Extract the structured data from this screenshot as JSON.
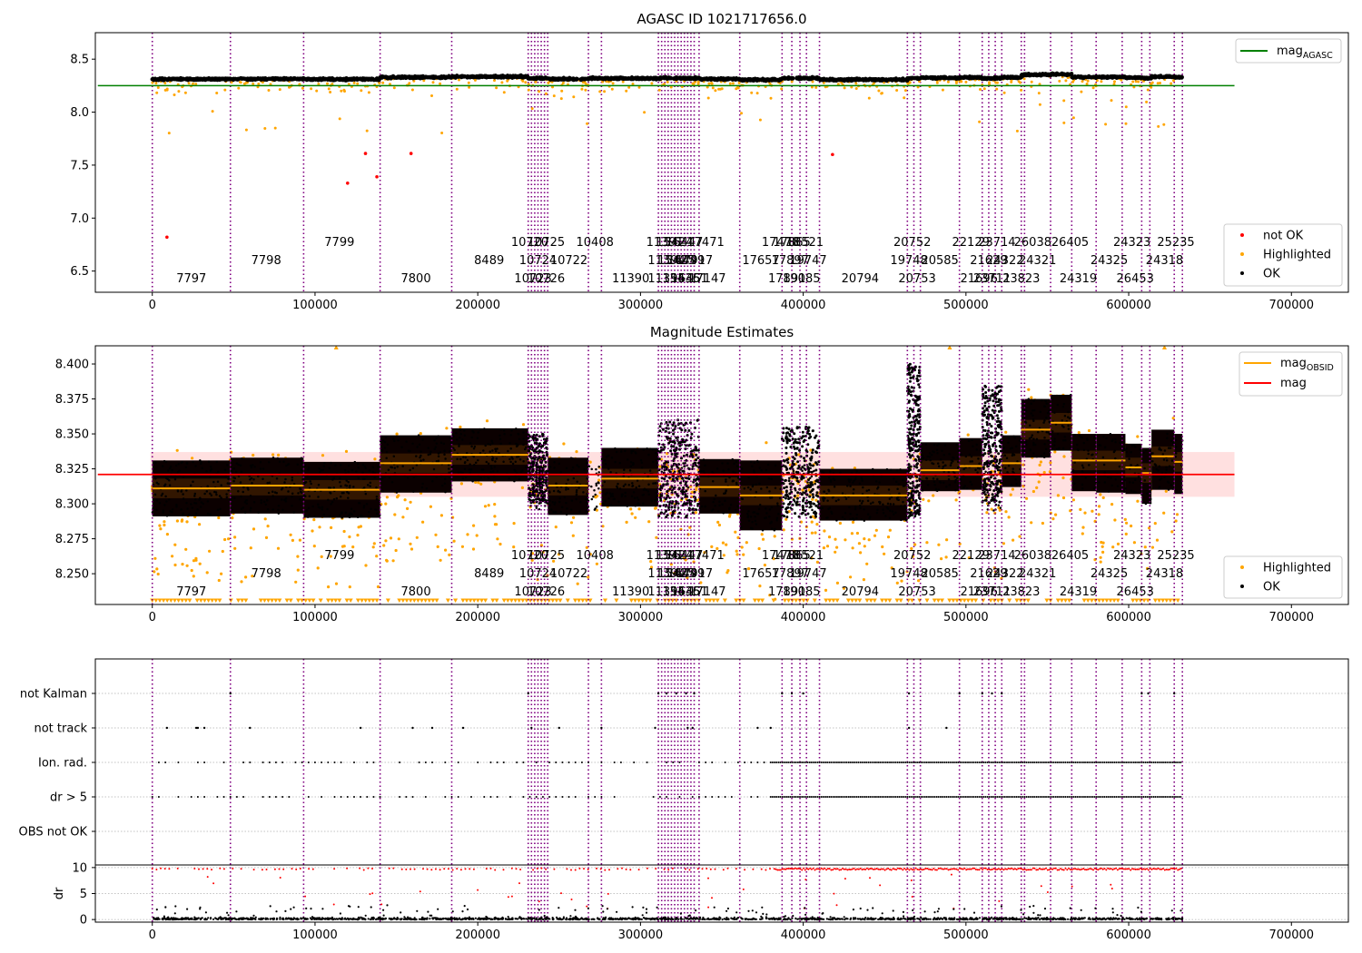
{
  "chart_data": [
    {
      "type": "scatter",
      "title": "AGASC ID 1021717656.0",
      "xlim": [
        -35000,
        735000
      ],
      "ylim": [
        6.3,
        8.75
      ],
      "xticks": [
        0,
        100000,
        200000,
        300000,
        400000,
        500000,
        600000,
        700000
      ],
      "xtick_labels": [
        "0",
        "100000",
        "200000",
        "300000",
        "400000",
        "500000",
        "600000",
        "700000"
      ],
      "yticks": [
        6.5,
        7.0,
        7.5,
        8.0,
        8.5
      ],
      "ytick_labels": [
        "6.5",
        "7.0",
        "7.5",
        "8.0",
        "8.5"
      ],
      "legend_top": [
        {
          "label": "mag",
          "sub": "AGASC",
          "color": "#008000",
          "kind": "line"
        }
      ],
      "legend_bottom": [
        {
          "label": "not OK",
          "color": "#ff0000",
          "kind": "dot"
        },
        {
          "label": "Highlighted",
          "color": "#ffa500",
          "kind": "dot"
        },
        {
          "label": "OK",
          "color": "#000000",
          "kind": "dot"
        }
      ],
      "mag_agasc": 8.25,
      "not_ok_points": [
        [
          9000,
          6.82
        ],
        [
          120000,
          7.33
        ],
        [
          131000,
          7.61
        ],
        [
          138000,
          7.39
        ],
        [
          159000,
          7.61
        ],
        [
          418000,
          7.6
        ]
      ]
    },
    {
      "type": "scatter",
      "title": "Magnitude Estimates",
      "xlim": [
        -35000,
        735000
      ],
      "ylim": [
        8.228,
        8.413
      ],
      "xticks": [
        0,
        100000,
        200000,
        300000,
        400000,
        500000,
        600000,
        700000
      ],
      "xtick_labels": [
        "0",
        "100000",
        "200000",
        "300000",
        "400000",
        "500000",
        "600000",
        "700000"
      ],
      "yticks": [
        8.25,
        8.275,
        8.3,
        8.325,
        8.35,
        8.375,
        8.4
      ],
      "ytick_labels": [
        "8.250",
        "8.275",
        "8.300",
        "8.325",
        "8.350",
        "8.375",
        "8.400"
      ],
      "legend_top": [
        {
          "label": "mag",
          "sub": "OBSID",
          "color": "#ffa500",
          "kind": "line"
        },
        {
          "label": "mag",
          "sub": "",
          "color": "#ff0000",
          "kind": "line"
        }
      ],
      "legend_bottom": [
        {
          "label": "Highlighted",
          "color": "#ffa500",
          "kind": "dot"
        },
        {
          "label": "OK",
          "color": "#000000",
          "kind": "dot"
        }
      ],
      "mag": 8.321,
      "mag_band": [
        8.305,
        8.337
      ],
      "obsid_segments": [
        {
          "x0": 0,
          "x1": 48000,
          "mag": 8.311,
          "lo": 8.291,
          "hi": 8.331
        },
        {
          "x0": 48000,
          "x1": 93000,
          "mag": 8.313,
          "lo": 8.293,
          "hi": 8.333
        },
        {
          "x0": 93000,
          "x1": 140000,
          "mag": 8.31,
          "lo": 8.29,
          "hi": 8.33
        },
        {
          "x0": 140000,
          "x1": 184000,
          "mag": 8.329,
          "lo": 8.308,
          "hi": 8.349
        },
        {
          "x0": 184000,
          "x1": 231000,
          "mag": 8.335,
          "lo": 8.316,
          "hi": 8.354
        },
        {
          "x0": 243000,
          "x1": 268000,
          "mag": 8.313,
          "lo": 8.292,
          "hi": 8.333
        },
        {
          "x0": 276000,
          "x1": 311000,
          "mag": 8.318,
          "lo": 8.298,
          "hi": 8.34
        },
        {
          "x0": 336000,
          "x1": 361000,
          "mag": 8.312,
          "lo": 8.293,
          "hi": 8.332
        },
        {
          "x0": 361000,
          "x1": 387000,
          "mag": 8.306,
          "lo": 8.281,
          "hi": 8.331
        },
        {
          "x0": 410000,
          "x1": 464000,
          "mag": 8.306,
          "lo": 8.288,
          "hi": 8.325
        },
        {
          "x0": 472000,
          "x1": 496000,
          "mag": 8.324,
          "lo": 8.309,
          "hi": 8.344
        },
        {
          "x0": 496000,
          "x1": 510000,
          "mag": 8.327,
          "lo": 8.31,
          "hi": 8.347
        },
        {
          "x0": 522000,
          "x1": 534000,
          "mag": 8.329,
          "lo": 8.312,
          "hi": 8.349
        },
        {
          "x0": 534000,
          "x1": 552000,
          "mag": 8.353,
          "lo": 8.333,
          "hi": 8.375
        },
        {
          "x0": 552000,
          "x1": 565000,
          "mag": 8.358,
          "lo": 8.338,
          "hi": 8.378
        },
        {
          "x0": 565000,
          "x1": 580000,
          "mag": 8.331,
          "lo": 8.309,
          "hi": 8.35
        },
        {
          "x0": 580000,
          "x1": 598000,
          "mag": 8.331,
          "lo": 8.308,
          "hi": 8.35
        },
        {
          "x0": 598000,
          "x1": 608000,
          "mag": 8.326,
          "lo": 8.307,
          "hi": 8.343
        },
        {
          "x0": 608000,
          "x1": 614000,
          "mag": 8.322,
          "lo": 8.3,
          "hi": 8.34
        },
        {
          "x0": 614000,
          "x1": 628000,
          "mag": 8.334,
          "lo": 8.31,
          "hi": 8.353
        },
        {
          "x0": 628000,
          "x1": 633000,
          "mag": 8.33,
          "lo": 8.307,
          "hi": 8.35
        }
      ]
    },
    {
      "type": "scatter",
      "title": "",
      "xlim": [
        -35000,
        735000
      ],
      "xticks": [
        0,
        100000,
        200000,
        300000,
        400000,
        500000,
        600000,
        700000
      ],
      "xtick_labels": [
        "0",
        "100000",
        "200000",
        "300000",
        "400000",
        "500000",
        "600000",
        "700000"
      ],
      "categories": [
        "OBS not OK",
        "dr > 5",
        "Ion. rad.",
        "not track",
        "not Kalman"
      ],
      "flag_rows": [
        {
          "label": "not Kalman",
          "xs": [
            48000,
            231000,
            311000,
            316000,
            322000,
            328000,
            333000,
            387000,
            393000,
            400000,
            465000,
            496000,
            510000,
            516000,
            522000,
            608000,
            612000,
            628000
          ]
        },
        {
          "label": "not track",
          "xs": [
            9000,
            27000,
            28000,
            32000,
            60000,
            128000,
            160000,
            172000,
            191000,
            233000,
            250000,
            276000,
            309000,
            329000,
            332000,
            372000,
            380000,
            465000,
            488000
          ]
        }
      ],
      "dr_ylim": [
        -0.5,
        10.5
      ],
      "dr_yticks": [
        0,
        5,
        10
      ],
      "dr_ytick_labels": [
        "0",
        "5",
        "10"
      ],
      "dr_ylabel": "dr"
    }
  ],
  "obsid_lines": [
    0,
    48000,
    93000,
    140000,
    184000,
    231000,
    233000,
    235000,
    237000,
    239000,
    241000,
    243000,
    268000,
    276000,
    311000,
    313000,
    315000,
    317000,
    319000,
    321000,
    323000,
    325000,
    327000,
    329000,
    331000,
    333000,
    336000,
    361000,
    387000,
    393000,
    398000,
    402000,
    410000,
    464000,
    468000,
    472000,
    496000,
    510000,
    514000,
    518000,
    522000,
    534000,
    536000,
    552000,
    565000,
    580000,
    596000,
    608000,
    613000,
    628000,
    633000
  ],
  "obsid_labels": [
    {
      "text": "7797",
      "x": 24000,
      "row": 0
    },
    {
      "text": "7798",
      "x": 70000,
      "row": 1
    },
    {
      "text": "7799",
      "x": 115000,
      "row": 2
    },
    {
      "text": "7800",
      "x": 162000,
      "row": 0
    },
    {
      "text": "8489",
      "x": 207000,
      "row": 1
    },
    {
      "text": "10720",
      "x": 232000,
      "row": 2
    },
    {
      "text": "10724",
      "x": 237000,
      "row": 1
    },
    {
      "text": "10723",
      "x": 234000,
      "row": 0
    },
    {
      "text": "10725",
      "x": 242000,
      "row": 2
    },
    {
      "text": "10726",
      "x": 242000,
      "row": 0
    },
    {
      "text": "10722",
      "x": 256000,
      "row": 1
    },
    {
      "text": "10408",
      "x": 272000,
      "row": 2
    },
    {
      "text": "11390",
      "x": 294000,
      "row": 0
    },
    {
      "text": "11391",
      "x": 315000,
      "row": 2
    },
    {
      "text": "11394",
      "x": 316000,
      "row": 1
    },
    {
      "text": "11395",
      "x": 316000,
      "row": 0
    },
    {
      "text": "15424",
      "x": 321000,
      "row": 2
    },
    {
      "text": "15425",
      "x": 322000,
      "row": 1
    },
    {
      "text": "15436",
      "x": 325000,
      "row": 0
    },
    {
      "text": "16447",
      "x": 327000,
      "row": 2
    },
    {
      "text": "16449",
      "x": 328000,
      "row": 1
    },
    {
      "text": "16451",
      "x": 330000,
      "row": 0
    },
    {
      "text": "17471",
      "x": 340000,
      "row": 2
    },
    {
      "text": "17147",
      "x": 341000,
      "row": 0
    },
    {
      "text": "17917",
      "x": 333000,
      "row": 1
    },
    {
      "text": "17657",
      "x": 374000,
      "row": 1
    },
    {
      "text": "17478",
      "x": 386000,
      "row": 2
    },
    {
      "text": "17891",
      "x": 390000,
      "row": 0
    },
    {
      "text": "17897",
      "x": 392000,
      "row": 1
    },
    {
      "text": "17865",
      "x": 393000,
      "row": 2
    },
    {
      "text": "18521",
      "x": 401000,
      "row": 2
    },
    {
      "text": "19747",
      "x": 403000,
      "row": 1
    },
    {
      "text": "19085",
      "x": 399000,
      "row": 0
    },
    {
      "text": "20794",
      "x": 435000,
      "row": 0
    },
    {
      "text": "20752",
      "x": 467000,
      "row": 2
    },
    {
      "text": "19748",
      "x": 465000,
      "row": 1
    },
    {
      "text": "20753",
      "x": 470000,
      "row": 0
    },
    {
      "text": "20585",
      "x": 484000,
      "row": 1
    },
    {
      "text": "22129",
      "x": 503000,
      "row": 2
    },
    {
      "text": "21629",
      "x": 514000,
      "row": 1
    },
    {
      "text": "21696",
      "x": 508000,
      "row": 0
    },
    {
      "text": "23714",
      "x": 519000,
      "row": 2
    },
    {
      "text": "24322",
      "x": 524000,
      "row": 1
    },
    {
      "text": "23711",
      "x": 516000,
      "row": 0
    },
    {
      "text": "26038",
      "x": 541000,
      "row": 2
    },
    {
      "text": "23823",
      "x": 534000,
      "row": 0
    },
    {
      "text": "24321",
      "x": 544000,
      "row": 1
    },
    {
      "text": "26405",
      "x": 564000,
      "row": 2
    },
    {
      "text": "24319",
      "x": 569000,
      "row": 0
    },
    {
      "text": "24325",
      "x": 588000,
      "row": 1
    },
    {
      "text": "24323",
      "x": 602000,
      "row": 2
    },
    {
      "text": "26453",
      "x": 604000,
      "row": 0
    },
    {
      "text": "24318",
      "x": 622000,
      "row": 1
    },
    {
      "text": "25235",
      "x": 629000,
      "row": 2
    }
  ]
}
